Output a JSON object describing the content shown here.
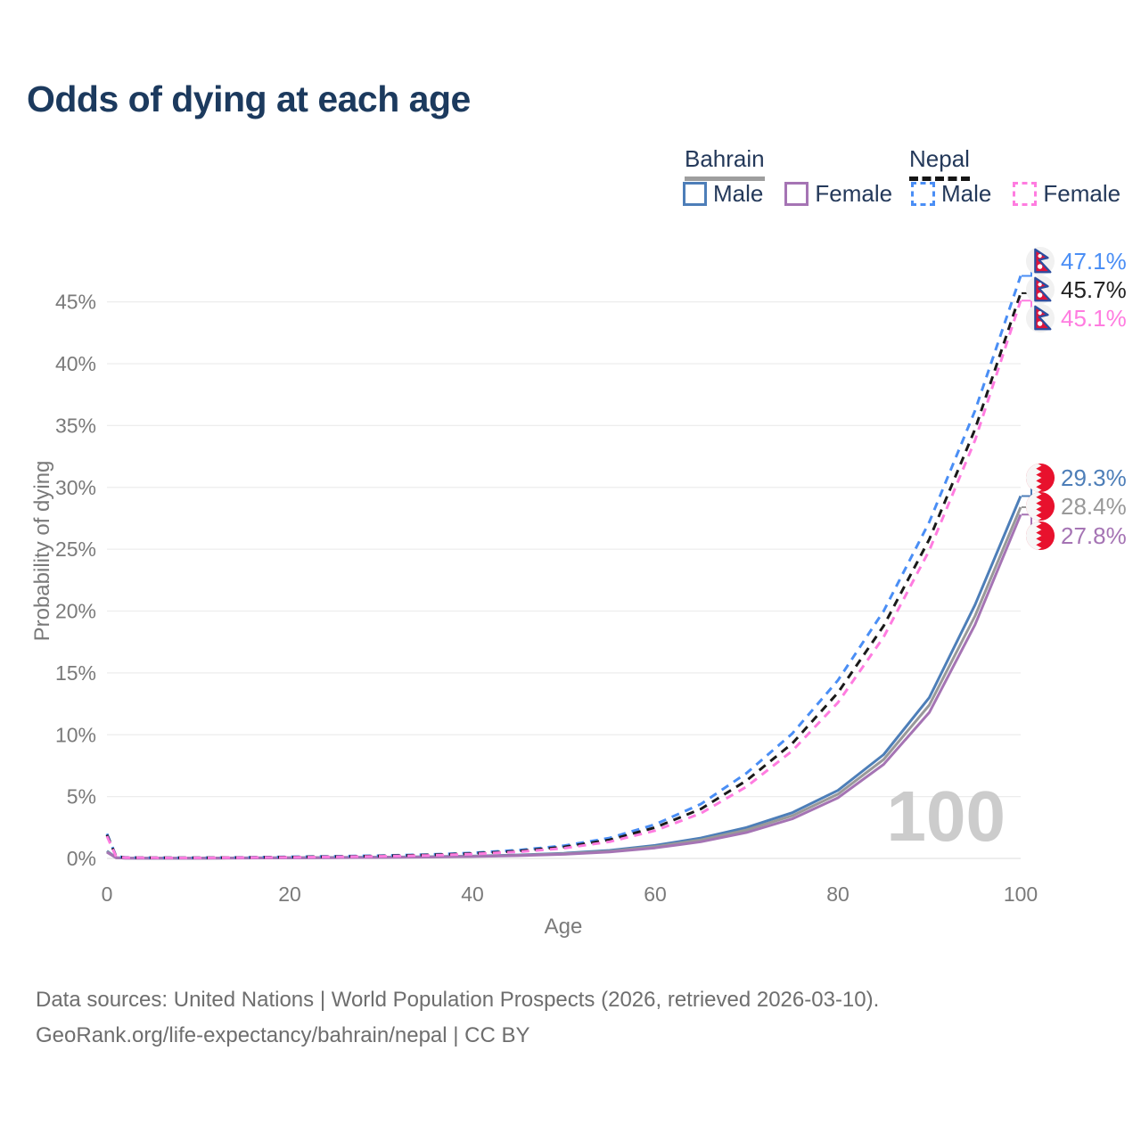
{
  "title": "Odds of dying at each age",
  "legend": {
    "groups": [
      {
        "label": "Bahrain",
        "line_style": "solid",
        "items": [
          {
            "label": "Male",
            "color": "#4d7eb8"
          },
          {
            "label": "Female",
            "color": "#a574b4"
          }
        ]
      },
      {
        "label": "Nepal",
        "line_style": "dashed",
        "items": [
          {
            "label": "Male",
            "color": "#4a8ef5"
          },
          {
            "label": "Female",
            "color": "#ff7ce0"
          }
        ]
      }
    ]
  },
  "end_labels": [
    {
      "series": "Nepal Male",
      "text": "47.1%",
      "flag": "nepal"
    },
    {
      "series": "Nepal",
      "text": "45.7%",
      "flag": "nepal"
    },
    {
      "series": "Nepal Female",
      "text": "45.1%",
      "flag": "nepal"
    },
    {
      "series": "Bahrain Male",
      "text": "29.3%",
      "flag": "bahrain"
    },
    {
      "series": "Bahrain",
      "text": "28.4%",
      "flag": "bahrain"
    },
    {
      "series": "Bahrain Female",
      "text": "27.8%",
      "flag": "bahrain"
    }
  ],
  "watermark": "100",
  "footer": {
    "line1": "Data sources: United Nations | World Population Prospects (2026, retrieved 2026-03-10).",
    "line2": "GeoRank.org/life-expectancy/bahrain/nepal | CC BY"
  },
  "chart_data": {
    "type": "line",
    "title": "Odds of dying at each age",
    "xlabel": "Age",
    "ylabel": "Probability of dying",
    "xlim": [
      0,
      100
    ],
    "ylim": [
      0,
      48
    ],
    "xticks": [
      0,
      20,
      40,
      60,
      80,
      100
    ],
    "yticks": [
      0,
      5,
      10,
      15,
      20,
      25,
      30,
      35,
      40,
      45
    ],
    "grid": true,
    "legend_position": "top-right",
    "x": [
      0,
      1,
      2,
      5,
      10,
      15,
      20,
      25,
      30,
      35,
      40,
      45,
      50,
      55,
      60,
      65,
      70,
      75,
      80,
      85,
      90,
      95,
      100
    ],
    "series": [
      {
        "name": "Bahrain Male",
        "country": "Bahrain",
        "sex": "male",
        "style": "solid",
        "color": "#4d7eb8",
        "end_value_pct": 29.3,
        "values": [
          0.6,
          0.06,
          0.03,
          0.02,
          0.02,
          0.04,
          0.06,
          0.08,
          0.1,
          0.14,
          0.19,
          0.28,
          0.42,
          0.65,
          1.05,
          1.65,
          2.5,
          3.7,
          5.5,
          8.4,
          13.0,
          20.5,
          29.3
        ]
      },
      {
        "name": "Bahrain",
        "country": "Bahrain",
        "sex": "total",
        "style": "solid",
        "color": "#999999",
        "end_value_pct": 28.4,
        "values": [
          0.55,
          0.055,
          0.028,
          0.018,
          0.018,
          0.035,
          0.055,
          0.072,
          0.09,
          0.125,
          0.17,
          0.25,
          0.38,
          0.58,
          0.95,
          1.5,
          2.3,
          3.45,
          5.2,
          8.0,
          12.4,
          19.6,
          28.4
        ]
      },
      {
        "name": "Bahrain Female",
        "country": "Bahrain",
        "sex": "female",
        "style": "solid",
        "color": "#a574b4",
        "end_value_pct": 27.8,
        "values": [
          0.5,
          0.05,
          0.025,
          0.015,
          0.015,
          0.03,
          0.045,
          0.06,
          0.08,
          0.11,
          0.15,
          0.22,
          0.33,
          0.52,
          0.85,
          1.35,
          2.1,
          3.2,
          4.9,
          7.6,
          11.8,
          18.9,
          27.8
        ]
      },
      {
        "name": "Nepal Male",
        "country": "Nepal",
        "sex": "male",
        "style": "dashed",
        "color": "#4a8ef5",
        "end_value_pct": 47.1,
        "values": [
          2.0,
          0.16,
          0.08,
          0.06,
          0.06,
          0.09,
          0.13,
          0.17,
          0.22,
          0.31,
          0.45,
          0.67,
          1.02,
          1.65,
          2.75,
          4.4,
          6.9,
          10.1,
          14.4,
          20.0,
          27.2,
          36.2,
          47.1
        ]
      },
      {
        "name": "Nepal",
        "country": "Nepal",
        "sex": "total",
        "style": "dashed",
        "color": "#1a1a1a",
        "end_value_pct": 45.7,
        "values": [
          1.9,
          0.15,
          0.07,
          0.055,
          0.05,
          0.08,
          0.11,
          0.15,
          0.2,
          0.28,
          0.4,
          0.6,
          0.92,
          1.5,
          2.5,
          4.0,
          6.3,
          9.3,
          13.4,
          18.8,
          25.8,
          34.7,
          45.7
        ]
      },
      {
        "name": "Nepal Female",
        "country": "Nepal",
        "sex": "female",
        "style": "dashed",
        "color": "#ff7ce0",
        "end_value_pct": 45.1,
        "values": [
          1.8,
          0.14,
          0.065,
          0.05,
          0.045,
          0.07,
          0.09,
          0.13,
          0.17,
          0.24,
          0.35,
          0.53,
          0.82,
          1.35,
          2.25,
          3.65,
          5.8,
          8.7,
          12.6,
          17.9,
          24.9,
          33.8,
          45.1
        ]
      }
    ]
  }
}
